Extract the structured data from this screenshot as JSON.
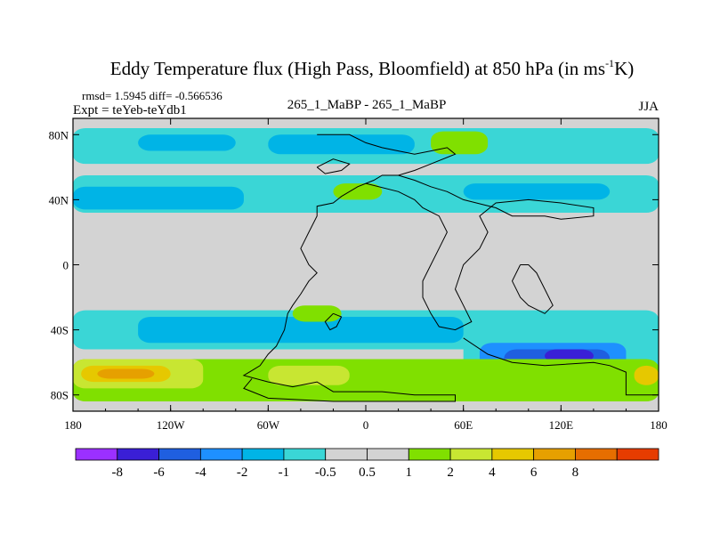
{
  "header": {
    "title": "Eddy Temperature flux (High Pass, Bloomfield) at 850 hPa (in ms",
    "title_sup": "-1",
    "title_end": "K)",
    "stats": "rmsd= 1.5945 diff= -0.566536",
    "expt": "Expt = teYeb-teYdb1",
    "center": "265_1_MaBP - 265_1_MaBP",
    "season": "JJA"
  },
  "chart_data": {
    "type": "heatmap",
    "title": "Eddy Temperature flux (High Pass, Bloomfield) at 850 hPa (in ms-1K)",
    "xlim": [
      -180,
      180
    ],
    "ylim": [
      -90,
      90
    ],
    "x_ticks": [
      {
        "value": -180,
        "label": "180"
      },
      {
        "value": -120,
        "label": "120W"
      },
      {
        "value": -60,
        "label": "60W"
      },
      {
        "value": 0,
        "label": "0"
      },
      {
        "value": 60,
        "label": "60E"
      },
      {
        "value": 120,
        "label": "120E"
      },
      {
        "value": 180,
        "label": "180"
      }
    ],
    "y_ticks": [
      {
        "value": 80,
        "label": "80N"
      },
      {
        "value": 40,
        "label": "40N"
      },
      {
        "value": 0,
        "label": "0"
      },
      {
        "value": -40,
        "label": "40S"
      },
      {
        "value": -80,
        "label": "80S"
      }
    ],
    "colorbar": {
      "colors": [
        "#9b30ff",
        "#3a1fd6",
        "#1f5fe0",
        "#1e90ff",
        "#00b4e6",
        "#3ad6d6",
        "#d3d3d3",
        "#d3d3d3",
        "#80e000",
        "#c8e632",
        "#e6c800",
        "#e6a000",
        "#e66e00",
        "#e63c00"
      ],
      "boundaries": [
        "-8",
        "-6",
        "-4",
        "-2",
        "-1",
        "-0.5",
        "0.5",
        "1",
        "2",
        "4",
        "6",
        "8"
      ]
    },
    "regions": [
      {
        "level": -0.75,
        "lon": [
          -180,
          180
        ],
        "lat": [
          32,
          55
        ],
        "desc": "northern mid-latitude band"
      },
      {
        "level": -1.5,
        "lon": [
          -180,
          -75
        ],
        "lat": [
          34,
          48
        ]
      },
      {
        "level": -1.5,
        "lon": [
          60,
          150
        ],
        "lat": [
          40,
          50
        ]
      },
      {
        "level": -0.75,
        "lon": [
          -180,
          180
        ],
        "lat": [
          62,
          84
        ]
      },
      {
        "level": -1.5,
        "lon": [
          -140,
          -80
        ],
        "lat": [
          70,
          80
        ]
      },
      {
        "level": -1.5,
        "lon": [
          -60,
          30
        ],
        "lat": [
          68,
          80
        ]
      },
      {
        "level": 1.5,
        "lon": [
          40,
          75
        ],
        "lat": [
          68,
          82
        ]
      },
      {
        "level": 1.5,
        "lon": [
          -20,
          10
        ],
        "lat": [
          40,
          50
        ]
      },
      {
        "level": -0.75,
        "lon": [
          -180,
          180
        ],
        "lat": [
          -52,
          -28
        ]
      },
      {
        "level": -1.5,
        "lon": [
          -140,
          60
        ],
        "lat": [
          -48,
          -32
        ]
      },
      {
        "level": 1.5,
        "lon": [
          -45,
          -15
        ],
        "lat": [
          -35,
          -25
        ]
      },
      {
        "level": -0.75,
        "lon": [
          60,
          180
        ],
        "lat": [
          -72,
          -42
        ]
      },
      {
        "level": -3,
        "lon": [
          70,
          160
        ],
        "lat": [
          -68,
          -48
        ]
      },
      {
        "level": -5,
        "lon": [
          85,
          150
        ],
        "lat": [
          -65,
          -52
        ]
      },
      {
        "level": -7,
        "lon": [
          110,
          140
        ],
        "lat": [
          -60,
          -52
        ]
      },
      {
        "level": 1.5,
        "lon": [
          -180,
          180
        ],
        "lat": [
          -84,
          -58
        ]
      },
      {
        "level": 3,
        "lon": [
          -180,
          -100
        ],
        "lat": [
          -76,
          -58
        ]
      },
      {
        "level": 5,
        "lon": [
          -175,
          -120
        ],
        "lat": [
          -72,
          -62
        ]
      },
      {
        "level": 7,
        "lon": [
          -165,
          -130
        ],
        "lat": [
          -70,
          -64
        ]
      },
      {
        "level": 3,
        "lon": [
          -60,
          -10
        ],
        "lat": [
          -74,
          -62
        ]
      },
      {
        "level": 5,
        "lon": [
          165,
          180
        ],
        "lat": [
          -74,
          -62
        ]
      }
    ],
    "coastlines": [
      [
        [
          -30,
          80
        ],
        [
          -10,
          80
        ],
        [
          0,
          75
        ],
        [
          10,
          72
        ],
        [
          20,
          70
        ],
        [
          30,
          68
        ],
        [
          40,
          70
        ],
        [
          50,
          72
        ],
        [
          55,
          68
        ],
        [
          40,
          62
        ],
        [
          30,
          58
        ],
        [
          20,
          55
        ],
        [
          10,
          55
        ],
        [
          5,
          52
        ],
        [
          0,
          50
        ],
        [
          -5,
          48
        ],
        [
          -15,
          42
        ],
        [
          -20,
          38
        ],
        [
          -30,
          36
        ],
        [
          -30,
          30
        ],
        [
          -35,
          20
        ],
        [
          -40,
          10
        ],
        [
          -35,
          0
        ],
        [
          -30,
          -5
        ],
        [
          -35,
          -10
        ],
        [
          -40,
          -18
        ],
        [
          -45,
          -25
        ],
        [
          -48,
          -30
        ],
        [
          -50,
          -40
        ],
        [
          -55,
          -50
        ],
        [
          -60,
          -55
        ],
        [
          -65,
          -62
        ],
        [
          -70,
          -65
        ],
        [
          -75,
          -68
        ],
        [
          -60,
          -72
        ],
        [
          -45,
          -75
        ],
        [
          -30,
          -72
        ],
        [
          -20,
          -78
        ],
        [
          10,
          -78
        ],
        [
          30,
          -80
        ],
        [
          55,
          -80
        ],
        [
          55,
          -84
        ],
        [
          -20,
          -84
        ],
        [
          -60,
          -82
        ],
        [
          -75,
          -76
        ],
        [
          -70,
          -70
        ]
      ],
      [
        [
          0,
          50
        ],
        [
          20,
          45
        ],
        [
          30,
          40
        ],
        [
          35,
          35
        ],
        [
          45,
          30
        ],
        [
          50,
          20
        ],
        [
          45,
          10
        ],
        [
          40,
          0
        ],
        [
          35,
          -10
        ],
        [
          35,
          -20
        ],
        [
          40,
          -30
        ],
        [
          45,
          -38
        ],
        [
          55,
          -40
        ],
        [
          65,
          -35
        ],
        [
          60,
          -25
        ],
        [
          55,
          -15
        ],
        [
          60,
          0
        ],
        [
          70,
          10
        ],
        [
          75,
          20
        ],
        [
          70,
          30
        ],
        [
          80,
          38
        ],
        [
          100,
          40
        ],
        [
          120,
          38
        ],
        [
          140,
          35
        ],
        [
          140,
          30
        ],
        [
          120,
          28
        ],
        [
          110,
          30
        ],
        [
          90,
          30
        ],
        [
          80,
          35
        ],
        [
          60,
          40
        ],
        [
          50,
          45
        ],
        [
          40,
          48
        ],
        [
          30,
          52
        ],
        [
          20,
          55
        ]
      ],
      [
        [
          95,
          0
        ],
        [
          90,
          -10
        ],
        [
          95,
          -20
        ],
        [
          100,
          -25
        ],
        [
          110,
          -30
        ],
        [
          115,
          -25
        ],
        [
          110,
          -15
        ],
        [
          105,
          -5
        ],
        [
          100,
          0
        ],
        [
          95,
          0
        ]
      ],
      [
        [
          60,
          -45
        ],
        [
          75,
          -55
        ],
        [
          90,
          -60
        ],
        [
          110,
          -62
        ],
        [
          140,
          -60
        ],
        [
          150,
          -62
        ],
        [
          160,
          -66
        ],
        [
          160,
          -80
        ],
        [
          180,
          -80
        ]
      ],
      [
        [
          -20,
          -30
        ],
        [
          -25,
          -35
        ],
        [
          -22,
          -40
        ],
        [
          -18,
          -38
        ],
        [
          -15,
          -32
        ],
        [
          -20,
          -30
        ]
      ],
      [
        [
          -30,
          60
        ],
        [
          -20,
          65
        ],
        [
          -10,
          62
        ],
        [
          -15,
          58
        ],
        [
          -25,
          56
        ],
        [
          -30,
          60
        ]
      ]
    ]
  }
}
